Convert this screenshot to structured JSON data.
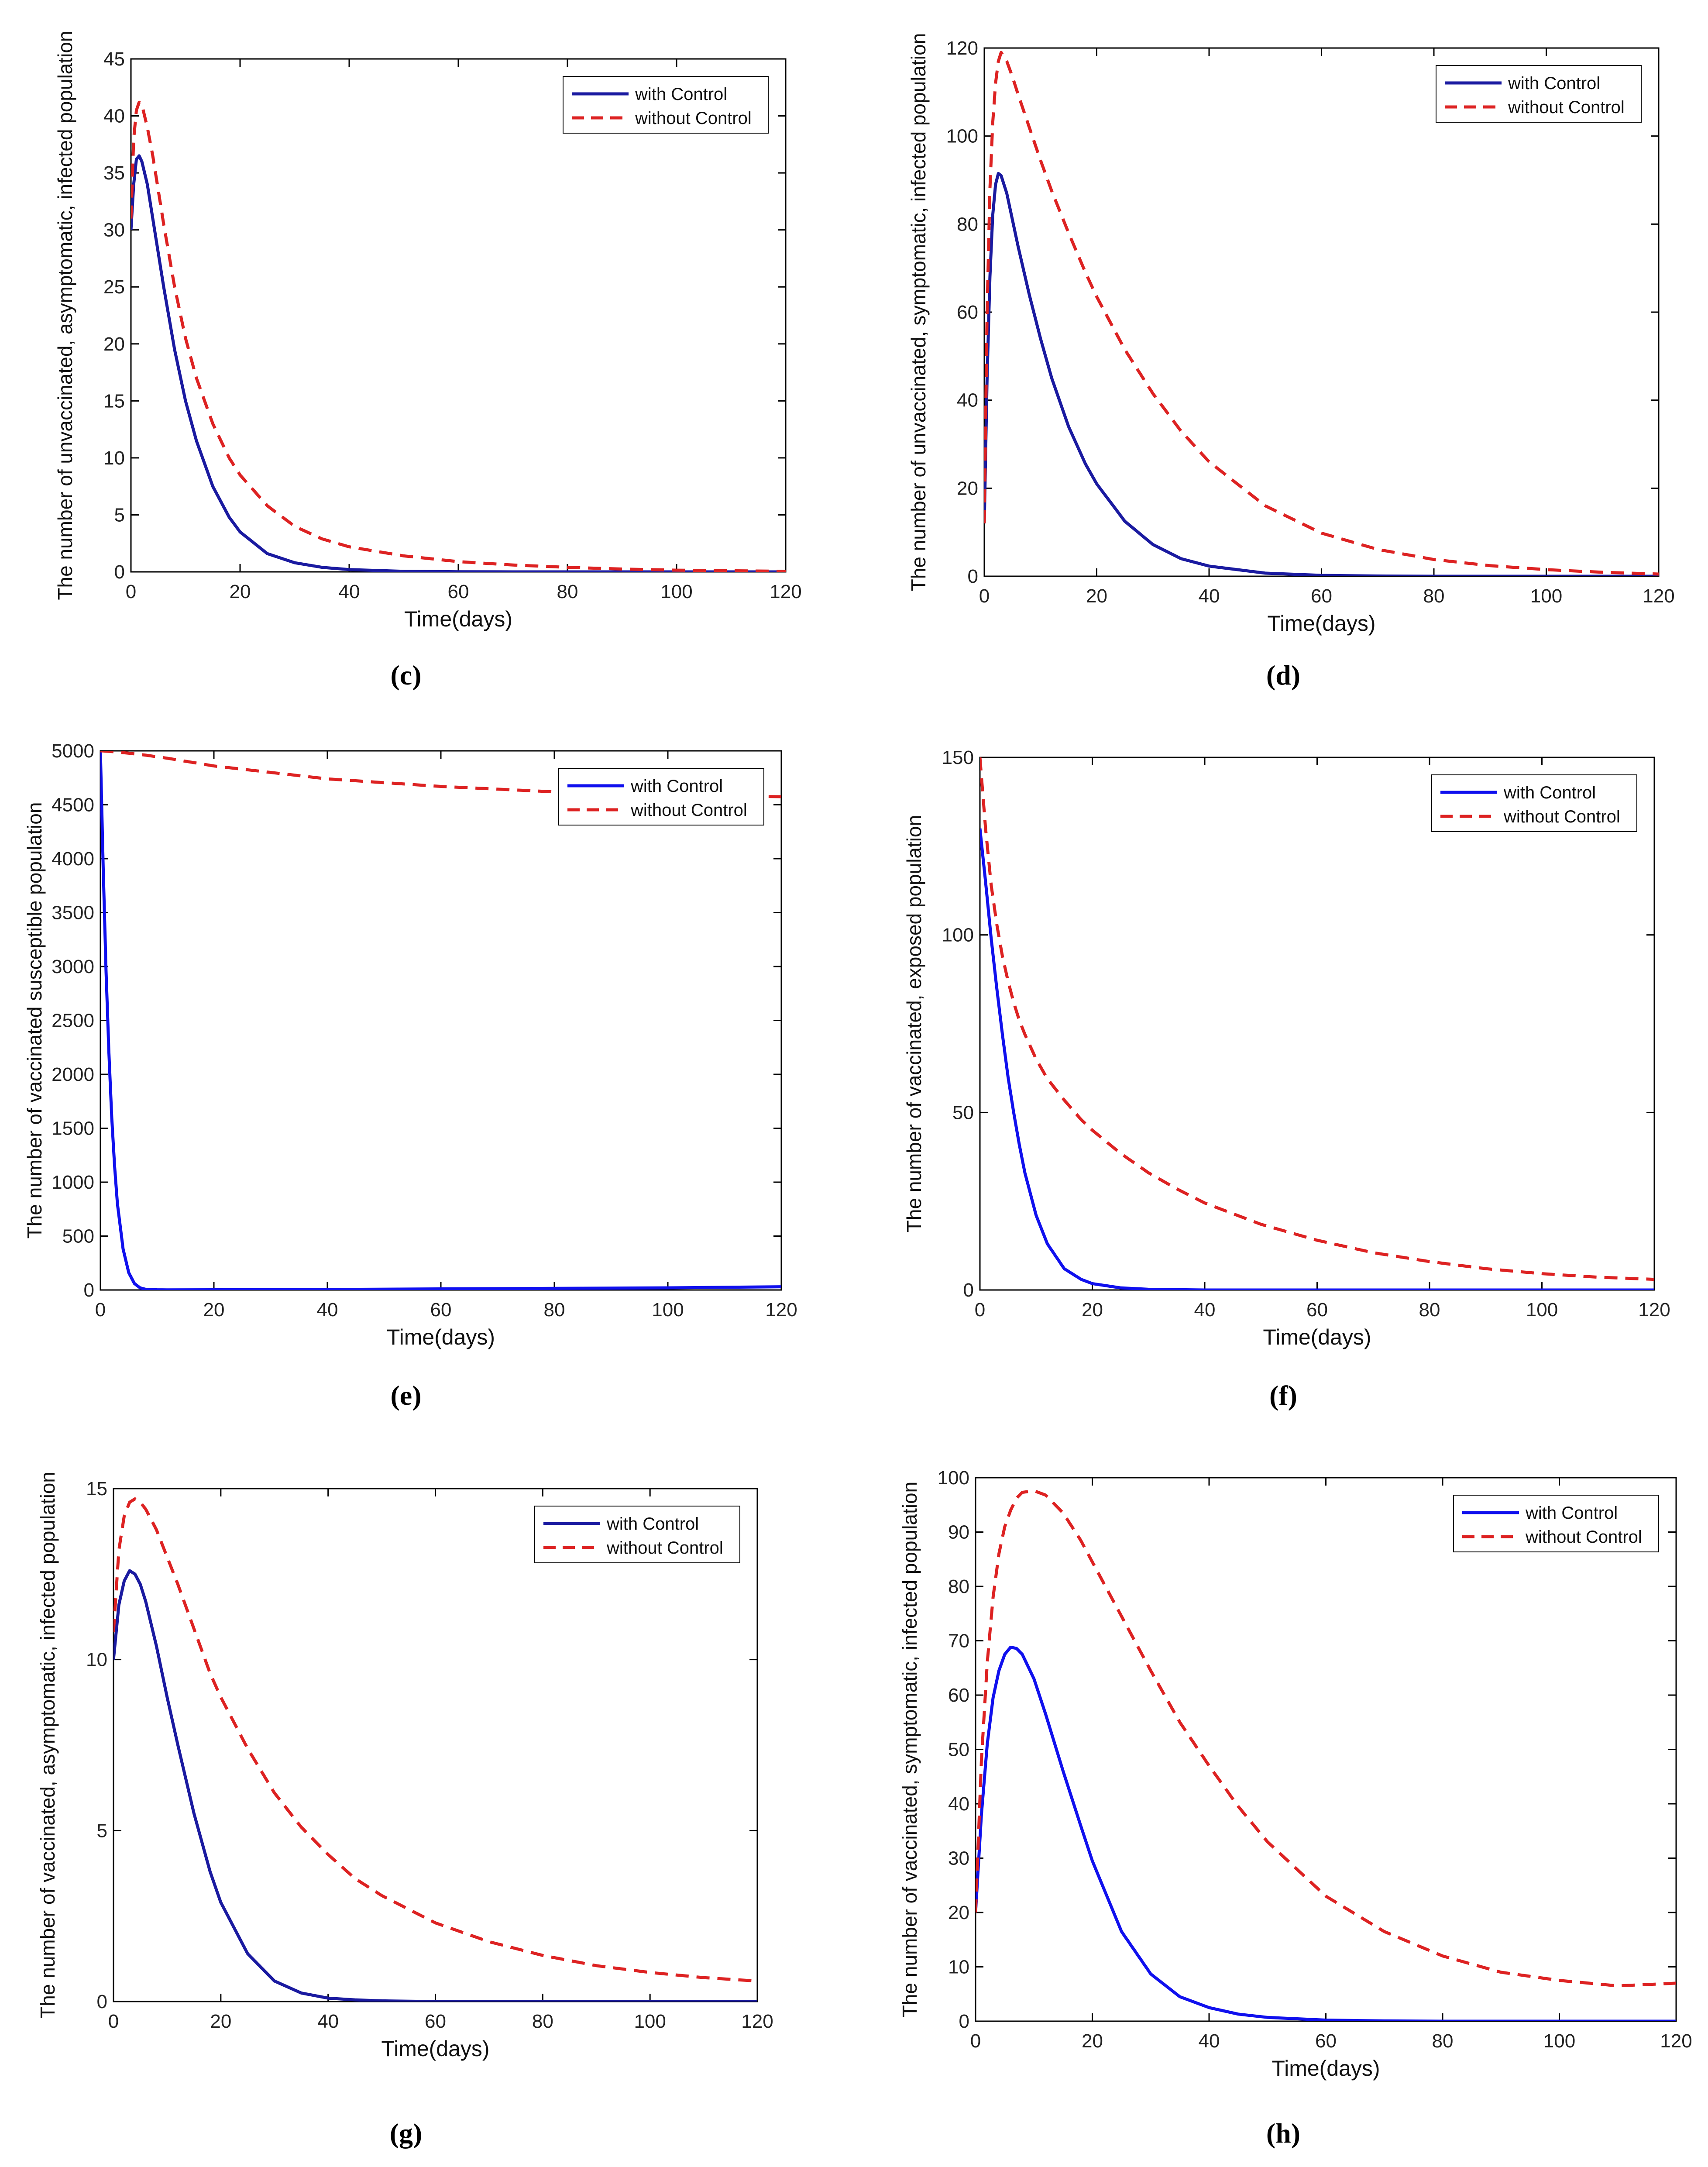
{
  "figure": {
    "panels": [
      {
        "id": "c",
        "caption": "(c)"
      },
      {
        "id": "d",
        "caption": "(d)"
      },
      {
        "id": "e",
        "caption": "(e)"
      },
      {
        "id": "f",
        "caption": "(f)"
      },
      {
        "id": "g",
        "caption": "(g)"
      },
      {
        "id": "h",
        "caption": "(h)"
      }
    ]
  },
  "colors": {
    "with_control_dark": "#1a1aa0",
    "with_control_bright": "#1010ee",
    "without_control": "#dd2222",
    "axis": "#000000"
  },
  "chart_data": [
    {
      "panel": "c",
      "type": "line",
      "xlabel": "Time(days)",
      "ylabel": "The number of unvaccinated, asymptomatic, infected population",
      "xlim": [
        0,
        120
      ],
      "ylim": [
        0,
        45
      ],
      "xticks": [
        0,
        20,
        40,
        60,
        80,
        100,
        120
      ],
      "yticks": [
        0,
        5,
        10,
        15,
        20,
        25,
        30,
        35,
        40,
        45
      ],
      "legend": "top-right",
      "x": [
        0,
        0.5,
        1,
        1.5,
        2,
        3,
        4,
        5,
        6,
        8,
        10,
        12,
        15,
        18,
        20,
        25,
        30,
        35,
        40,
        50,
        60,
        70,
        80,
        90,
        100,
        110,
        120
      ],
      "series": [
        {
          "name": "with Control",
          "style": "solid",
          "color": "#1a1aa0",
          "values": [
            30,
            34,
            36.2,
            36.5,
            36,
            34,
            31,
            28,
            25,
            19.5,
            15,
            11.5,
            7.5,
            4.8,
            3.5,
            1.6,
            0.8,
            0.4,
            0.2,
            0.05,
            0.01,
            0,
            0,
            0,
            0,
            0,
            0
          ]
        },
        {
          "name": "without Control",
          "style": "dashed",
          "color": "#dd2222",
          "values": [
            31,
            38,
            40.5,
            41.2,
            41,
            39,
            36.5,
            33.5,
            30.5,
            25,
            20.5,
            17,
            13,
            10,
            8.5,
            5.8,
            4,
            2.9,
            2.2,
            1.4,
            0.9,
            0.6,
            0.4,
            0.25,
            0.15,
            0.1,
            0.05
          ]
        }
      ]
    },
    {
      "panel": "d",
      "type": "line",
      "xlabel": "Time(days)",
      "ylabel": "The number of unvaccinated, symptomatic, infected population",
      "xlim": [
        0,
        120
      ],
      "ylim": [
        0,
        120
      ],
      "xticks": [
        0,
        20,
        40,
        60,
        80,
        100,
        120
      ],
      "yticks": [
        0,
        20,
        40,
        60,
        80,
        100,
        120
      ],
      "legend": "top-right",
      "x": [
        0,
        0.5,
        1,
        1.5,
        2,
        2.5,
        3,
        4,
        5,
        6,
        8,
        10,
        12,
        15,
        18,
        20,
        25,
        30,
        35,
        40,
        50,
        60,
        70,
        80,
        90,
        100,
        110,
        120
      ],
      "series": [
        {
          "name": "with Control",
          "style": "solid",
          "color": "#1a1aa0",
          "values": [
            12,
            45,
            68,
            82,
            89,
            91.5,
            91,
            87,
            81,
            75,
            64,
            54,
            45,
            34,
            25.5,
            21,
            12.5,
            7.2,
            4,
            2.3,
            0.7,
            0.2,
            0.05,
            0,
            0,
            0,
            0,
            0
          ]
        },
        {
          "name": "without Control",
          "style": "dashed",
          "color": "#dd2222",
          "values": [
            12,
            60,
            88,
            103,
            112,
            117,
            119,
            117,
            113.5,
            109.5,
            102,
            94.5,
            87.5,
            78,
            69,
            63.5,
            51.5,
            41.5,
            33,
            26,
            16,
            9.8,
            6.1,
            3.8,
            2.4,
            1.5,
            0.9,
            0.5
          ]
        }
      ]
    },
    {
      "panel": "e",
      "type": "line",
      "xlabel": "Time(days)",
      "ylabel": "The number of vaccinated susceptible population",
      "xlim": [
        0,
        120
      ],
      "ylim": [
        0,
        5000
      ],
      "xticks": [
        0,
        20,
        40,
        60,
        80,
        100,
        120
      ],
      "yticks": [
        0,
        500,
        1000,
        1500,
        2000,
        2500,
        3000,
        3500,
        4000,
        4500,
        5000
      ],
      "legend": "top-right",
      "x": [
        0,
        0.5,
        1,
        1.5,
        2,
        2.5,
        3,
        4,
        5,
        6,
        7,
        8,
        10,
        12,
        20,
        40,
        60,
        80,
        100,
        120
      ],
      "series": [
        {
          "name": "with Control",
          "style": "solid",
          "color": "#1010ee",
          "values": [
            5000,
            3900,
            2950,
            2200,
            1600,
            1150,
            800,
            380,
            160,
            60,
            20,
            6,
            2,
            1,
            2,
            5,
            10,
            15,
            20,
            30
          ]
        },
        {
          "name": "without Control",
          "style": "dashed",
          "color": "#dd2222",
          "values": [
            5000,
            4999,
            4997,
            4995,
            4993,
            4991,
            4988,
            4983,
            4978,
            4972,
            4966,
            4960,
            4945,
            4930,
            4860,
            4740,
            4670,
            4620,
            4590,
            4575
          ]
        }
      ]
    },
    {
      "panel": "f",
      "type": "line",
      "xlabel": "Time(days)",
      "ylabel": "The number of vaccinated, exposed population",
      "xlim": [
        0,
        120
      ],
      "ylim": [
        0,
        150
      ],
      "xticks": [
        0,
        20,
        40,
        60,
        80,
        100,
        120
      ],
      "yticks": [
        0,
        50,
        100,
        150
      ],
      "legend": "top-right",
      "x": [
        0,
        1,
        2,
        3,
        4,
        5,
        6,
        7,
        8,
        10,
        12,
        15,
        18,
        20,
        25,
        30,
        35,
        40,
        50,
        60,
        70,
        80,
        90,
        100,
        110,
        120
      ],
      "series": [
        {
          "name": "with Control",
          "style": "solid",
          "color": "#1010ee",
          "values": [
            130,
            115,
            99,
            85,
            72,
            60,
            50,
            41,
            33,
            21,
            13,
            6,
            3,
            1.8,
            0.6,
            0.2,
            0.1,
            0,
            0,
            0,
            0,
            0,
            0,
            0,
            0,
            0
          ]
        },
        {
          "name": "without Control",
          "style": "dashed",
          "color": "#dd2222",
          "values": [
            150,
            130,
            114,
            103,
            94,
            87,
            81,
            76,
            72,
            65,
            59.5,
            53.5,
            48,
            45,
            38.5,
            33,
            28.5,
            24.5,
            18.5,
            14,
            10.5,
            8,
            6,
            4.6,
            3.6,
            3
          ]
        }
      ]
    },
    {
      "panel": "g",
      "type": "line",
      "xlabel": "Time(days)",
      "ylabel": "The number of vaccinated, asymptomatic, infected population",
      "xlim": [
        0,
        120
      ],
      "ylim": [
        0,
        15
      ],
      "xticks": [
        0,
        20,
        40,
        60,
        80,
        100,
        120
      ],
      "yticks": [
        0,
        5,
        10,
        15
      ],
      "legend": "top-right",
      "x": [
        0,
        1,
        2,
        3,
        4,
        5,
        6,
        8,
        10,
        12,
        15,
        18,
        20,
        25,
        30,
        35,
        40,
        45,
        50,
        60,
        70,
        80,
        90,
        100,
        110,
        120
      ],
      "series": [
        {
          "name": "with Control",
          "style": "solid",
          "color": "#1a1aa0",
          "values": [
            10,
            11.6,
            12.3,
            12.6,
            12.5,
            12.2,
            11.7,
            10.4,
            8.9,
            7.5,
            5.5,
            3.8,
            2.9,
            1.4,
            0.6,
            0.25,
            0.1,
            0.05,
            0.02,
            0,
            0,
            0,
            0,
            0,
            0,
            0
          ]
        },
        {
          "name": "without Control",
          "style": "dashed",
          "color": "#dd2222",
          "values": [
            10.8,
            13.2,
            14.2,
            14.6,
            14.7,
            14.6,
            14.4,
            13.8,
            13,
            12.2,
            10.9,
            9.6,
            8.9,
            7.4,
            6.1,
            5.1,
            4.3,
            3.6,
            3.1,
            2.3,
            1.75,
            1.35,
            1.05,
            0.85,
            0.7,
            0.6
          ]
        }
      ]
    },
    {
      "panel": "h",
      "type": "line",
      "xlabel": "Time(days)",
      "ylabel": "The number of vaccinated, symptomatic, infected population",
      "xlim": [
        0,
        120
      ],
      "ylim": [
        0,
        100
      ],
      "xticks": [
        0,
        20,
        40,
        60,
        80,
        100,
        120
      ],
      "yticks": [
        0,
        10,
        20,
        30,
        40,
        50,
        60,
        70,
        80,
        90,
        100
      ],
      "legend": "top-right",
      "x": [
        0,
        1,
        2,
        3,
        4,
        5,
        6,
        7,
        8,
        10,
        12,
        15,
        18,
        20,
        25,
        30,
        35,
        40,
        45,
        50,
        60,
        70,
        80,
        90,
        100,
        110,
        120
      ],
      "series": [
        {
          "name": "with Control",
          "style": "solid",
          "color": "#1010ee",
          "values": [
            20,
            38,
            51,
            59.5,
            64.5,
            67.5,
            68.8,
            68.6,
            67.5,
            63,
            56.5,
            46,
            36,
            29.5,
            16.5,
            8.7,
            4.5,
            2.5,
            1.3,
            0.7,
            0.2,
            0.05,
            0,
            0,
            0,
            0,
            0
          ]
        },
        {
          "name": "without Control",
          "style": "dashed",
          "color": "#dd2222",
          "values": [
            20,
            48,
            66,
            78,
            86,
            91,
            94,
            96.2,
            97.3,
            97.6,
            96.8,
            93.5,
            88.5,
            84.5,
            74.5,
            64.5,
            55,
            47,
            39.5,
            33,
            23,
            16.5,
            12,
            9,
            7.5,
            6.5,
            7
          ]
        }
      ]
    }
  ]
}
